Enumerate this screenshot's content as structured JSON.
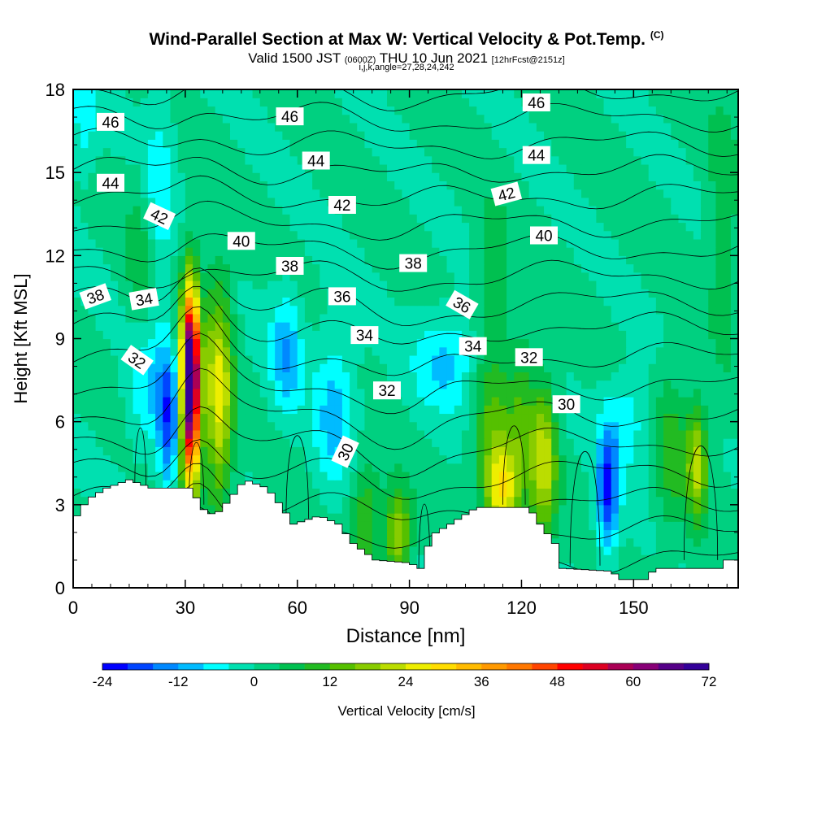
{
  "header": {
    "title": "Wind-Parallel Section at Max W: Vertical Velocity & Pot.Temp.",
    "title_mark": "(C)",
    "subtitle_a": "Valid 1500 JST",
    "subtitle_b": "(0600Z)",
    "subtitle_c": "THU 10 Jun 2021",
    "subtitle_d": "[12hrFcst@2151z]",
    "subtitle2": "i,j,k,angle=27,28,24,242"
  },
  "chart_data": {
    "type": "heatmap",
    "xlabel": "Distance [nm]",
    "ylabel": "Height [Kft MSL]",
    "xlim": [
      0,
      178
    ],
    "ylim": [
      0,
      18
    ],
    "xticks": [
      0,
      30,
      60,
      90,
      120,
      150
    ],
    "yticks": [
      0,
      3,
      6,
      9,
      12,
      15,
      18
    ],
    "colorbar": {
      "label": "Vertical Velocity [cm/s]",
      "min": -24,
      "max": 72,
      "step": 4,
      "tick_labels": [
        "-24",
        "-12",
        "0",
        "12",
        "24",
        "36",
        "48",
        "60",
        "72"
      ],
      "tick_values": [
        -24,
        -12,
        0,
        12,
        24,
        36,
        48,
        60,
        72
      ],
      "colors": [
        "#0000ff",
        "#0044ff",
        "#0088ff",
        "#00bbff",
        "#00ffff",
        "#00e0b0",
        "#00d080",
        "#00c050",
        "#22bb22",
        "#55c000",
        "#88cc00",
        "#bbdd00",
        "#eeee00",
        "#ffdd00",
        "#ffbb00",
        "#ff9900",
        "#ff7700",
        "#ff4400",
        "#ff0000",
        "#dd0022",
        "#aa0055",
        "#880077",
        "#550088",
        "#330099"
      ]
    },
    "terrain": [
      [
        0,
        2.6
      ],
      [
        3,
        3.2
      ],
      [
        8,
        3.6
      ],
      [
        14,
        3.9
      ],
      [
        20,
        3.6
      ],
      [
        31,
        3.6
      ],
      [
        33,
        2.9
      ],
      [
        37,
        2.6
      ],
      [
        41,
        3.2
      ],
      [
        45,
        3.9
      ],
      [
        51,
        3.6
      ],
      [
        55,
        2.9
      ],
      [
        58,
        2.3
      ],
      [
        65,
        2.6
      ],
      [
        70,
        2.3
      ],
      [
        74,
        1.6
      ],
      [
        80,
        1.0
      ],
      [
        89,
        0.9
      ],
      [
        92,
        0.7
      ],
      [
        95,
        1.9
      ],
      [
        100,
        2.3
      ],
      [
        107,
        2.9
      ],
      [
        121,
        2.9
      ],
      [
        124,
        2.3
      ],
      [
        128,
        1.6
      ],
      [
        130,
        0.7
      ],
      [
        143,
        0.6
      ],
      [
        146,
        0.3
      ],
      [
        152,
        0.3
      ],
      [
        155,
        0.7
      ],
      [
        172,
        0.7
      ],
      [
        174,
        1.0
      ],
      [
        178,
        1.0
      ]
    ],
    "w_features": [
      {
        "x": 31.5,
        "y": 7.5,
        "sx": 1.6,
        "sy": 2.2,
        "w": 75
      },
      {
        "x": 30.0,
        "y": 6.0,
        "sx": 3.0,
        "sy": 3.5,
        "w": 12
      },
      {
        "x": 39.0,
        "y": 7.0,
        "sx": 2.6,
        "sy": 2.8,
        "w": 25
      },
      {
        "x": 26.0,
        "y": 6.0,
        "sx": 2.2,
        "sy": 2.0,
        "w": -22
      },
      {
        "x": 20.0,
        "y": 7.0,
        "sx": 4.0,
        "sy": 1.5,
        "w": -8
      },
      {
        "x": 57.0,
        "y": 8.5,
        "sx": 3.0,
        "sy": 1.5,
        "w": -12
      },
      {
        "x": 70.0,
        "y": 6.5,
        "sx": 4.0,
        "sy": 2.0,
        "w": -10
      },
      {
        "x": 78.0,
        "y": 2.5,
        "sx": 3.0,
        "sy": 1.5,
        "w": 12
      },
      {
        "x": 87.0,
        "y": 2.0,
        "sx": 2.5,
        "sy": 1.2,
        "w": 20
      },
      {
        "x": 100.0,
        "y": 8.2,
        "sx": 6.0,
        "sy": 1.2,
        "w": -10
      },
      {
        "x": 115.0,
        "y": 3.5,
        "sx": 3.0,
        "sy": 1.2,
        "w": 25
      },
      {
        "x": 112.0,
        "y": 5.5,
        "sx": 3.5,
        "sy": 2.0,
        "w": 12
      },
      {
        "x": 126.0,
        "y": 4.5,
        "sx": 2.5,
        "sy": 2.0,
        "w": 22
      },
      {
        "x": 120.0,
        "y": 6.0,
        "sx": 2.5,
        "sy": 2.5,
        "w": 10
      },
      {
        "x": 143.0,
        "y": 3.5,
        "sx": 2.0,
        "sy": 1.5,
        "w": -22
      },
      {
        "x": 148.0,
        "y": 6.0,
        "sx": 4.0,
        "sy": 1.2,
        "w": -8
      },
      {
        "x": 167.0,
        "y": 4.5,
        "sx": 2.0,
        "sy": 1.5,
        "w": 20
      },
      {
        "x": 160.0,
        "y": 5.0,
        "sx": 3.0,
        "sy": 2.0,
        "w": 10
      },
      {
        "x": 23.0,
        "y": 14.0,
        "sx": 3.0,
        "sy": 3.0,
        "w": -7
      },
      {
        "x": 3.0,
        "y": 17.0,
        "sx": 2.5,
        "sy": 1.5,
        "w": -7
      },
      {
        "x": 18.0,
        "y": 12.0,
        "sx": 3.0,
        "sy": 2.0,
        "w": 6
      },
      {
        "x": 112.0,
        "y": 11.0,
        "sx": 3.0,
        "sy": 2.0,
        "w": 8
      },
      {
        "x": 174.0,
        "y": 13.0,
        "sx": 3.0,
        "sy": 4.0,
        "w": 6
      }
    ],
    "theta_labels": [
      {
        "text": "46",
        "x": 10,
        "y": 16.8,
        "angle": 0
      },
      {
        "text": "46",
        "x": 58,
        "y": 17.0,
        "angle": 0
      },
      {
        "text": "46",
        "x": 124,
        "y": 17.5,
        "angle": 0
      },
      {
        "text": "44",
        "x": 10,
        "y": 14.6,
        "angle": 0
      },
      {
        "text": "44",
        "x": 65,
        "y": 15.4,
        "angle": 0
      },
      {
        "text": "44",
        "x": 124,
        "y": 15.6,
        "angle": 0
      },
      {
        "text": "42",
        "x": 23,
        "y": 13.4,
        "angle": 25
      },
      {
        "text": "42",
        "x": 72,
        "y": 13.8,
        "angle": 0
      },
      {
        "text": "42",
        "x": 116,
        "y": 14.2,
        "angle": -15
      },
      {
        "text": "40",
        "x": 45,
        "y": 12.5,
        "angle": 0
      },
      {
        "text": "40",
        "x": 126,
        "y": 12.7,
        "angle": 0
      },
      {
        "text": "38",
        "x": 6,
        "y": 10.5,
        "angle": -20
      },
      {
        "text": "38",
        "x": 58,
        "y": 11.6,
        "angle": 0
      },
      {
        "text": "38",
        "x": 91,
        "y": 11.7,
        "angle": 0
      },
      {
        "text": "36",
        "x": 72,
        "y": 10.5,
        "angle": 0
      },
      {
        "text": "36",
        "x": 104,
        "y": 10.2,
        "angle": 30
      },
      {
        "text": "34",
        "x": 19,
        "y": 10.4,
        "angle": -10
      },
      {
        "text": "34",
        "x": 78,
        "y": 9.1,
        "angle": 0
      },
      {
        "text": "34",
        "x": 107,
        "y": 8.7,
        "angle": 0
      },
      {
        "text": "32",
        "x": 17,
        "y": 8.2,
        "angle": 35
      },
      {
        "text": "32",
        "x": 84,
        "y": 7.1,
        "angle": 0
      },
      {
        "text": "32",
        "x": 122,
        "y": 8.3,
        "angle": 0
      },
      {
        "text": "30",
        "x": 73,
        "y": 4.9,
        "angle": -65
      },
      {
        "text": "30",
        "x": 132,
        "y": 6.6,
        "angle": 0
      }
    ]
  }
}
